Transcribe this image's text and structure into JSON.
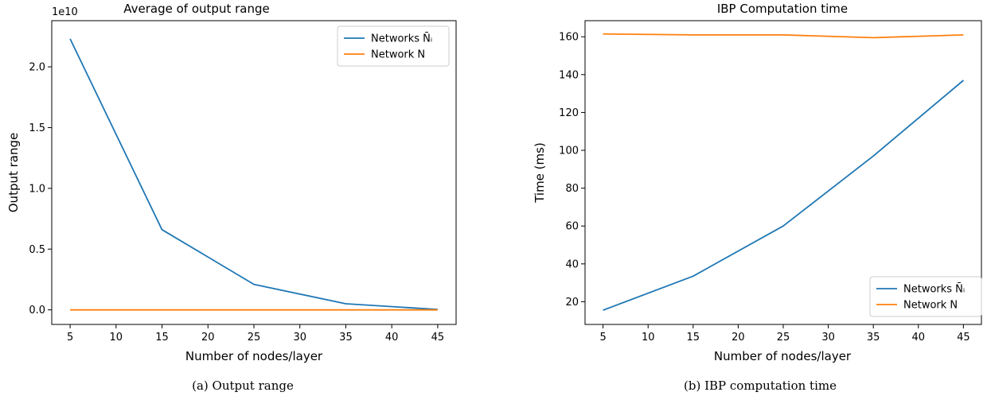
{
  "colors": {
    "blue": "#1f77b4",
    "orange": "#ff7f0e"
  },
  "chart_data": [
    {
      "type": "line",
      "title": "Average of output range",
      "xlabel": "Number of nodes/layer",
      "ylabel": "Output range",
      "y_offset_label": "1e10",
      "caption": "(a) Output range",
      "x_ticks": [
        5,
        10,
        15,
        20,
        25,
        30,
        35,
        40,
        45
      ],
      "y_ticks": [
        "0.0",
        "0.5",
        "1.0",
        "1.5",
        "2.0"
      ],
      "y_tick_values": [
        0,
        0.5,
        1.0,
        1.5,
        2.0
      ],
      "xlim": [
        3,
        47
      ],
      "ylim": [
        -0.12,
        2.38
      ],
      "legend_position": "upper right",
      "series": [
        {
          "name": "Networks N̄ᵢ",
          "x": [
            5,
            15,
            25,
            35,
            45
          ],
          "y": [
            2.23,
            0.66,
            0.21,
            0.05,
            0.003
          ]
        },
        {
          "name": "Network N",
          "x": [
            5,
            15,
            25,
            35,
            45
          ],
          "y": [
            0.0,
            0.0,
            0.0,
            0.0,
            0.0
          ]
        }
      ]
    },
    {
      "type": "line",
      "title": "IBP Computation time",
      "xlabel": "Number of nodes/layer",
      "ylabel": "Time (ms)",
      "caption": "(b) IBP computation time",
      "x_ticks": [
        5,
        10,
        15,
        20,
        25,
        30,
        35,
        40,
        45
      ],
      "y_ticks": [
        "20",
        "40",
        "60",
        "80",
        "100",
        "120",
        "140",
        "160"
      ],
      "y_tick_values": [
        20,
        40,
        60,
        80,
        100,
        120,
        140,
        160
      ],
      "xlim": [
        3,
        47
      ],
      "ylim": [
        8,
        168.5
      ],
      "legend_position": "lower right",
      "series": [
        {
          "name": "Networks N̄ᵢ",
          "x": [
            5,
            15,
            25,
            35,
            45
          ],
          "y": [
            15.5,
            33.5,
            60,
            97,
            137
          ]
        },
        {
          "name": "Network N",
          "x": [
            5,
            15,
            25,
            35,
            45
          ],
          "y": [
            161.5,
            161,
            161,
            159.5,
            161
          ]
        }
      ]
    }
  ]
}
